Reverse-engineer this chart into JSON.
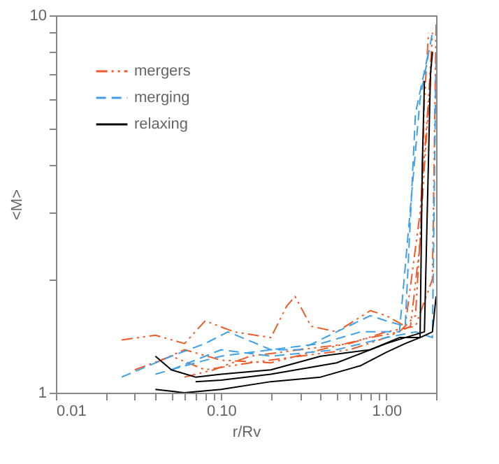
{
  "chart_data": {
    "type": "line",
    "xlabel": "r/Rv",
    "ylabel": "<M>",
    "log": "xy",
    "grid": false,
    "legend": "top left",
    "xlim": [
      0.01,
      2
    ],
    "ylim": [
      1,
      10
    ],
    "xticks": [
      0.01,
      {
        "value": 0.02,
        "label": null
      },
      {
        "value": 0.03,
        "label": null
      },
      {
        "value": 0.04,
        "label": null
      },
      {
        "value": 0.05,
        "label": null
      },
      {
        "value": 0.06,
        "label": null
      },
      {
        "value": 0.07,
        "label": null
      },
      {
        "value": 0.08,
        "label": null
      },
      {
        "value": 0.09,
        "label": null
      },
      {
        "value": 0.1,
        "label": "0.10"
      },
      {
        "value": 0.2,
        "label": null
      },
      {
        "value": 0.3,
        "label": null
      },
      {
        "value": 0.4,
        "label": null
      },
      {
        "value": 0.5,
        "label": null
      },
      {
        "value": 0.6,
        "label": null
      },
      {
        "value": 0.7,
        "label": null
      },
      {
        "value": 0.8,
        "label": null
      },
      {
        "value": 0.9,
        "label": null
      },
      {
        "value": 1,
        "label": "1.00"
      },
      {
        "value": 2,
        "label": null
      }
    ],
    "yticks": [
      1,
      {
        "value": 2,
        "label": null
      },
      {
        "value": 3,
        "label": null
      },
      {
        "value": 4,
        "label": null
      },
      {
        "value": 5,
        "label": null
      },
      {
        "value": 6,
        "label": null
      },
      {
        "value": 7,
        "label": null
      },
      {
        "value": 8,
        "label": null
      },
      {
        "value": 9,
        "label": null
      },
      10
    ],
    "series": [
      {
        "name": "mergers",
        "color": "#f05a28",
        "line_style": "dashdotdot",
        "x": [
          0.025,
          0.04,
          0.06,
          0.08,
          0.12,
          0.2,
          0.25,
          0.28,
          0.35,
          0.5,
          0.8,
          1.0,
          1.3,
          1.6,
          1.8,
          1.9
        ],
        "values": [
          1.38,
          1.42,
          1.35,
          1.55,
          1.45,
          1.4,
          1.7,
          1.8,
          1.5,
          1.45,
          1.65,
          1.6,
          1.5,
          3.0,
          6.0,
          9.0
        ]
      },
      {
        "color": "#f05a28",
        "line_style": "dashdotdot",
        "x": [
          0.03,
          0.05,
          0.08,
          0.15,
          0.3,
          0.6,
          1.0,
          1.4,
          1.6,
          1.7,
          1.8
        ],
        "values": [
          1.15,
          1.25,
          1.15,
          1.2,
          1.25,
          1.3,
          1.4,
          1.5,
          2.5,
          6,
          9
        ]
      },
      {
        "color": "#f05a28",
        "line_style": "dashdotdot",
        "x": [
          0.04,
          0.06,
          0.1,
          0.2,
          0.4,
          0.8,
          1.2,
          1.5,
          1.7,
          1.9
        ],
        "values": [
          1.2,
          1.3,
          1.22,
          1.2,
          1.3,
          1.4,
          1.45,
          1.6,
          4,
          8
        ]
      },
      {
        "color": "#f05a28",
        "line_style": "dashdotdot",
        "x": [
          0.06,
          0.09,
          0.15,
          0.3,
          0.6,
          1.0,
          1.5,
          1.9,
          2.0
        ],
        "values": [
          1.1,
          1.15,
          1.25,
          1.3,
          1.35,
          1.45,
          1.5,
          2,
          9.5
        ]
      },
      {
        "name": "merging",
        "color": "#3fa0e8",
        "line_style": "dashed",
        "x": [
          0.025,
          0.05,
          0.08,
          0.11,
          0.2,
          0.3,
          0.5,
          0.8,
          1.0,
          1.3,
          1.5,
          1.8
        ],
        "values": [
          1.1,
          1.25,
          1.35,
          1.45,
          1.3,
          1.3,
          1.45,
          1.6,
          1.55,
          1.5,
          5.5,
          8
        ]
      },
      {
        "color": "#3fa0e8",
        "line_style": "dashed",
        "x": [
          0.04,
          0.07,
          0.1,
          0.2,
          0.4,
          0.7,
          1.2,
          1.6,
          1.9
        ],
        "values": [
          1.12,
          1.2,
          1.25,
          1.3,
          1.35,
          1.45,
          1.45,
          6,
          9
        ]
      },
      {
        "color": "#3fa0e8",
        "line_style": "dashed",
        "x": [
          0.05,
          0.1,
          0.2,
          0.5,
          1.0,
          1.5,
          1.9,
          2.0
        ],
        "values": [
          1.15,
          1.3,
          1.25,
          1.3,
          1.4,
          1.45,
          1.4,
          8
        ]
      },
      {
        "name": "relaxing",
        "color": "#000000",
        "line_style": "solid",
        "x": [
          0.04,
          0.06,
          0.1,
          0.2,
          0.4,
          0.7,
          1.0,
          1.3,
          1.6,
          1.65,
          1.7
        ],
        "values": [
          1.02,
          1.0,
          1.02,
          1.07,
          1.1,
          1.18,
          1.28,
          1.35,
          1.4,
          4,
          6.7
        ]
      },
      {
        "color": "#000000",
        "line_style": "solid",
        "x": [
          0.04,
          0.05,
          0.07,
          0.1,
          0.2,
          0.4,
          0.8,
          1.2,
          1.6,
          1.9,
          2.0
        ],
        "values": [
          1.25,
          1.15,
          1.1,
          1.12,
          1.15,
          1.25,
          1.3,
          1.4,
          1.4,
          1.45,
          1.8
        ]
      },
      {
        "color": "#000000",
        "line_style": "solid",
        "x": [
          0.07,
          0.1,
          0.2,
          0.5,
          1.0,
          1.3,
          1.7,
          1.85,
          1.9
        ],
        "values": [
          1.07,
          1.08,
          1.12,
          1.2,
          1.35,
          1.4,
          1.45,
          7,
          8
        ]
      }
    ]
  }
}
